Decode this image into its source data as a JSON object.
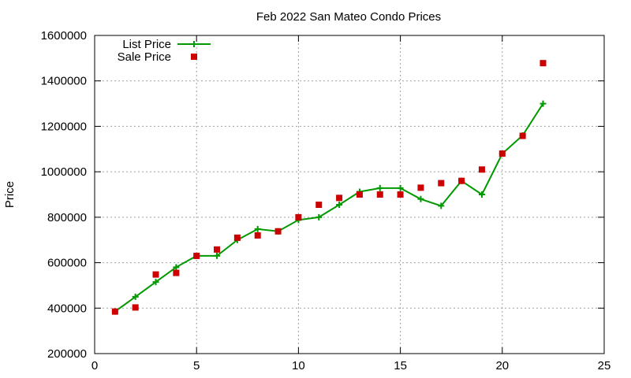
{
  "chart_data": {
    "type": "scatter",
    "title": "Feb 2022 San Mateo Condo Prices",
    "xlabel": "",
    "ylabel": "Price",
    "xlim": [
      0,
      25
    ],
    "ylim": [
      200000,
      1600000
    ],
    "xticks": [
      0,
      5,
      10,
      15,
      20,
      25
    ],
    "yticks": [
      200000,
      400000,
      600000,
      800000,
      1000000,
      1200000,
      1400000,
      1600000
    ],
    "grid": true,
    "legend_position": "top-left",
    "series": [
      {
        "name": "List Price",
        "style": "line-with-plus-markers",
        "color": "#009900",
        "x": [
          1,
          2,
          3,
          4,
          5,
          6,
          7,
          8,
          9,
          10,
          11,
          12,
          13,
          14,
          15,
          16,
          17,
          18,
          19,
          20,
          21,
          22
        ],
        "y": [
          385000,
          450000,
          515000,
          580000,
          630000,
          630000,
          700000,
          748000,
          738000,
          788000,
          800000,
          855000,
          912000,
          928000,
          928000,
          880000,
          850000,
          960000,
          900000,
          1080000,
          1160000,
          1300000
        ]
      },
      {
        "name": "Sale Price",
        "style": "square-markers",
        "color": "#cc0000",
        "x": [
          1,
          2,
          3,
          4,
          5,
          6,
          7,
          8,
          9,
          10,
          11,
          12,
          13,
          14,
          15,
          16,
          17,
          18,
          19,
          20,
          21,
          22
        ],
        "y": [
          385000,
          403000,
          548000,
          555000,
          630000,
          658000,
          710000,
          720000,
          738000,
          800000,
          855000,
          885000,
          900000,
          900000,
          900000,
          930000,
          950000,
          960000,
          1010000,
          1080000,
          1158000,
          1478000
        ]
      }
    ]
  }
}
